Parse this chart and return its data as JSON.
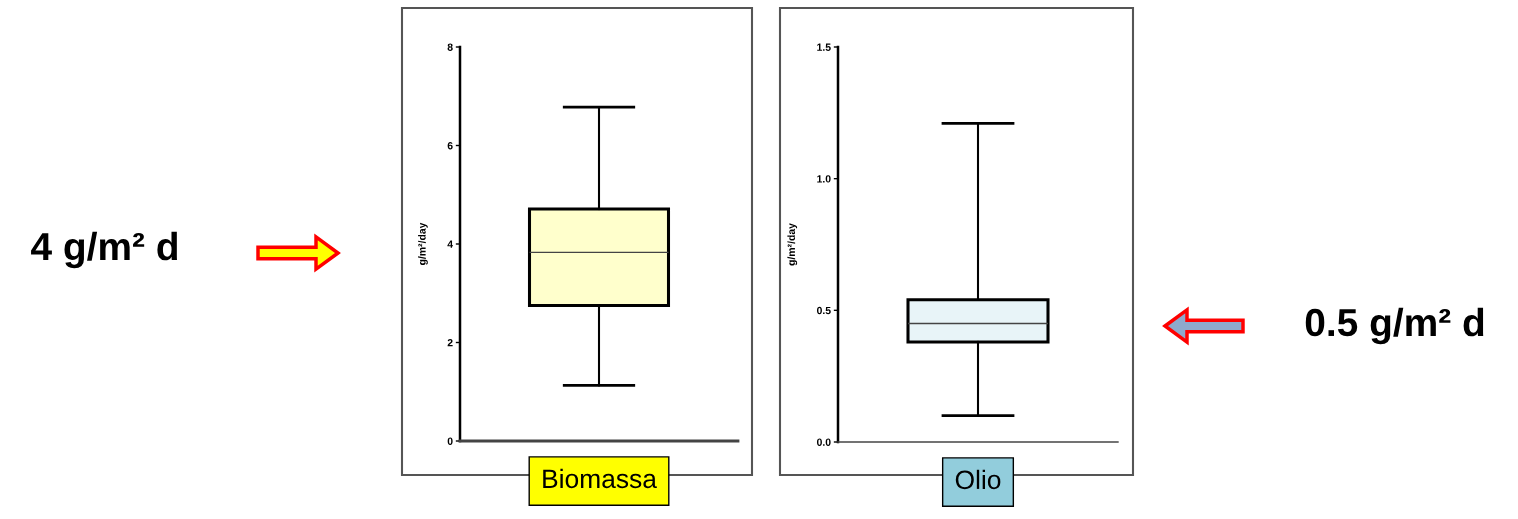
{
  "chart_data": [
    {
      "type": "box",
      "categories": [
        "Biomassa"
      ],
      "ylabel": "g/m²/day",
      "ylim": [
        0,
        8
      ],
      "yticks": [
        0,
        2,
        4,
        6,
        8
      ],
      "color": "#ffffcc",
      "boxes": [
        {
          "low": 1.13,
          "q1": 2.75,
          "median": 3.83,
          "q3": 4.71,
          "high": 6.78
        }
      ],
      "annotations": [
        "4 g/m² d"
      ]
    },
    {
      "type": "box",
      "categories": [
        "Olio"
      ],
      "ylabel": "g/m²/day",
      "ylim": [
        0,
        1.5
      ],
      "yticks": [
        {
          "value": 0,
          "label": "0.0"
        },
        0.5,
        {
          "value": 1,
          "label": "1.0"
        },
        1.5
      ],
      "color": "#e8f4f8",
      "boxes": [
        {
          "low": 0.1,
          "q1": 0.38,
          "median": 0.45,
          "q3": 0.54,
          "high": 1.21
        }
      ],
      "annotations": [
        "0.5 g/m² d"
      ]
    }
  ]
}
